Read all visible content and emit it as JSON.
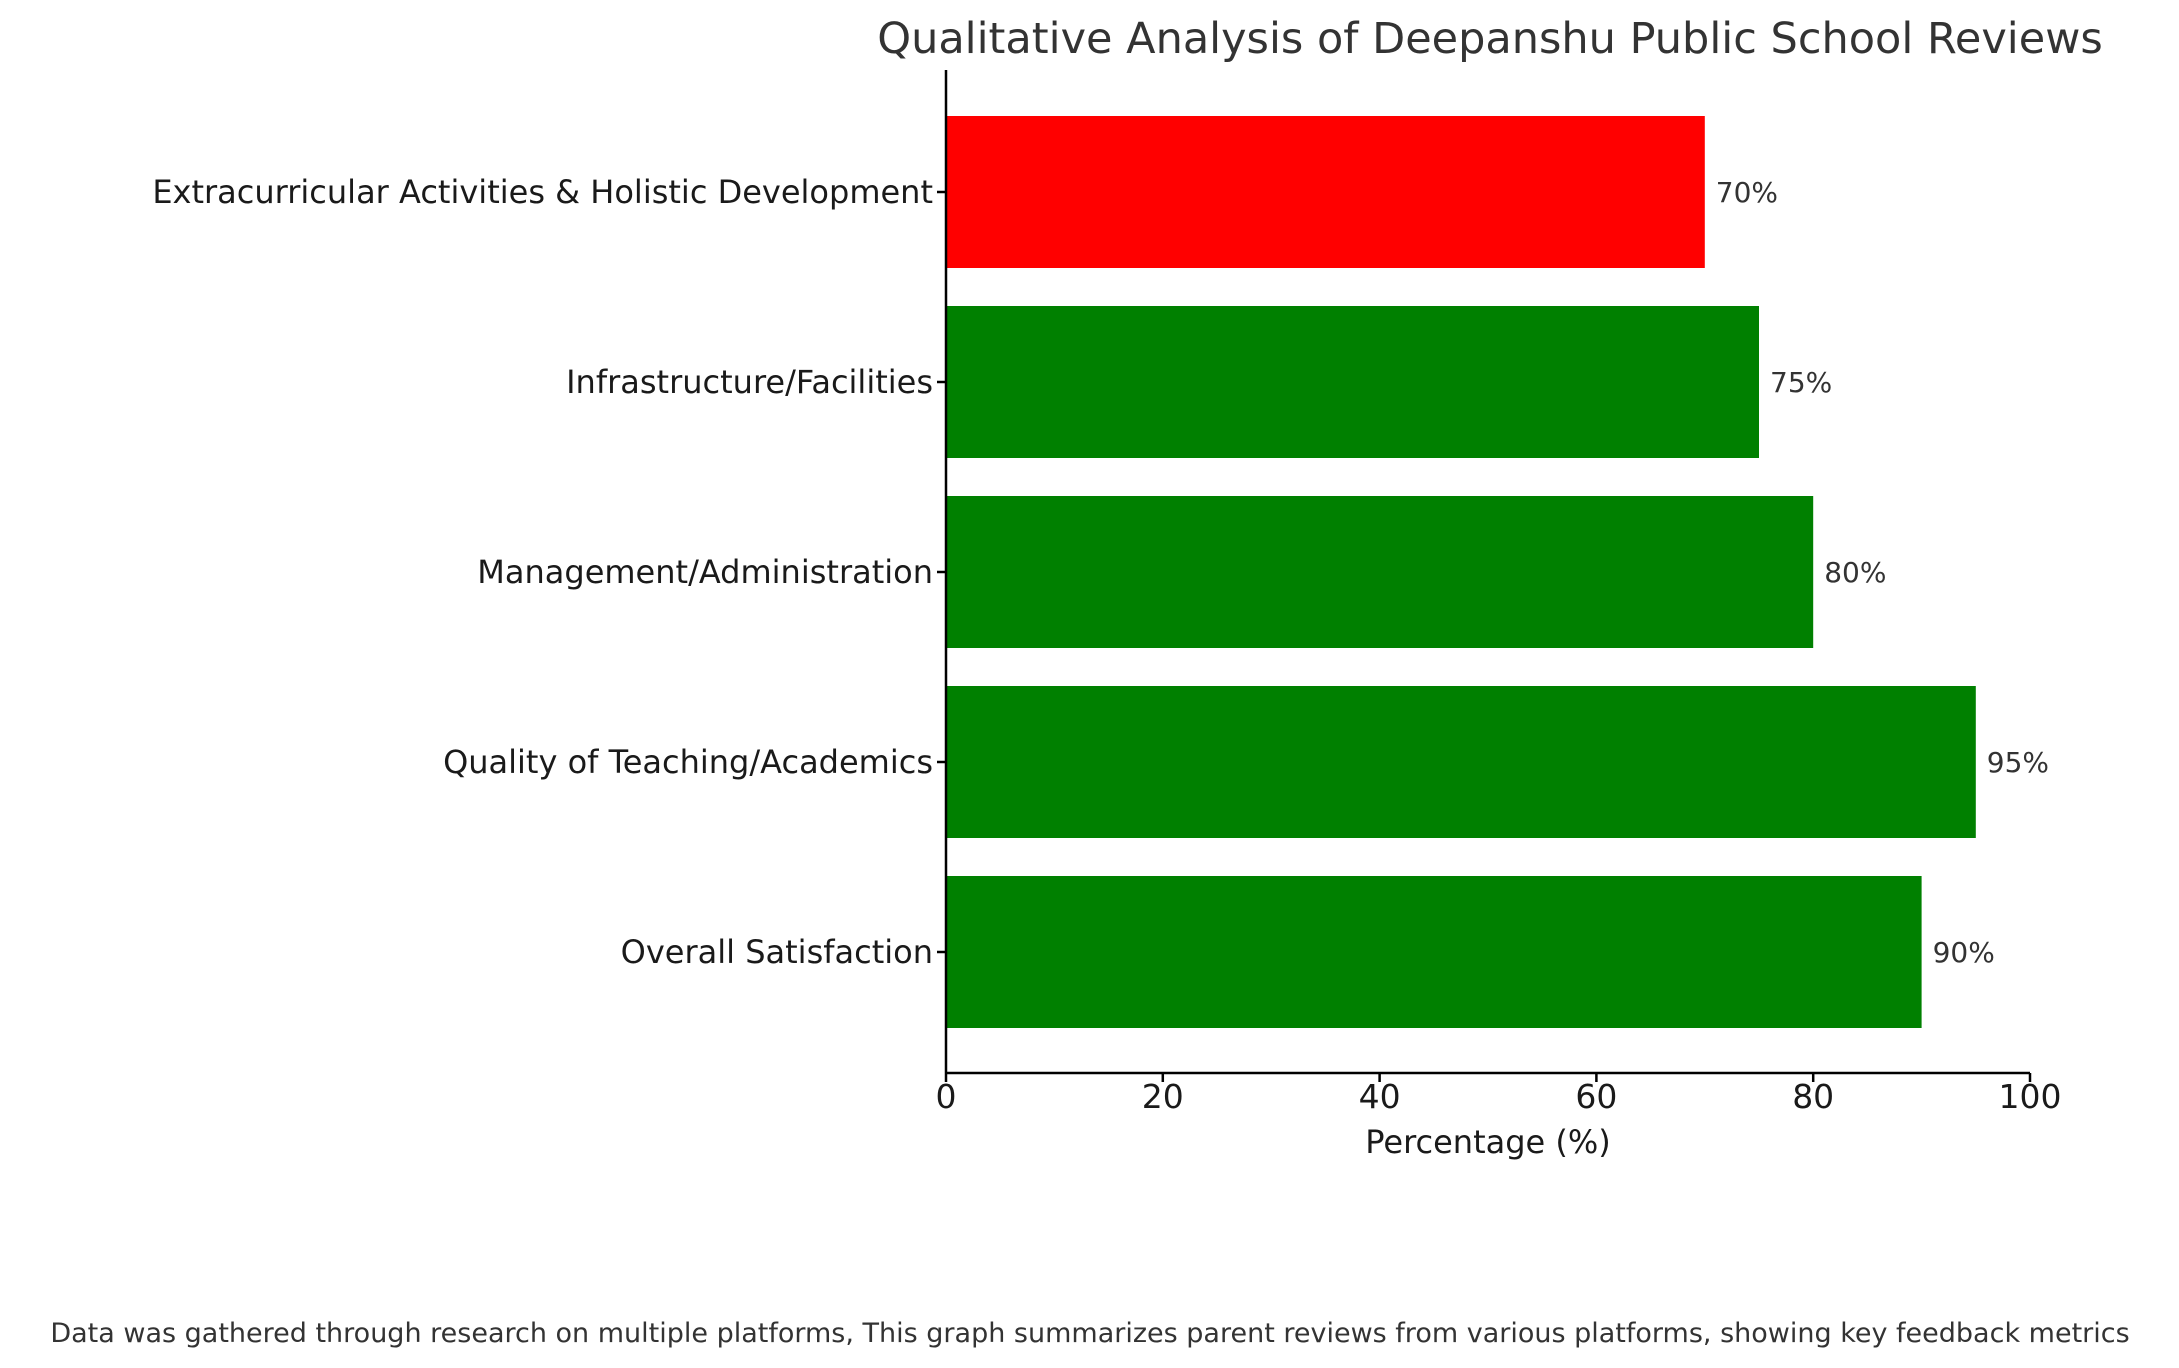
{
  "chart_data": {
    "type": "bar",
    "orientation": "horizontal",
    "title": "Qualitative Analysis of Deepanshu Public School Reviews",
    "xlabel": "Percentage (%)",
    "ylabel": "",
    "xlim": [
      0,
      100
    ],
    "xticks": [
      "0",
      "20",
      "40",
      "60",
      "80",
      "100"
    ],
    "categories": [
      "Overall Satisfaction",
      "Quality of Teaching/Academics",
      "Management/Administration",
      "Infrastructure/Facilities",
      "Extracurricular Activities & Holistic Development"
    ],
    "values": [
      90,
      95,
      80,
      75,
      70
    ],
    "value_labels": [
      "90%",
      "95%",
      "80%",
      "75%",
      "70%"
    ],
    "colors": [
      "#008000",
      "#008000",
      "#008000",
      "#008000",
      "#ff0000"
    ],
    "grid": false,
    "legend": "none",
    "footnote": "Data was gathered through research on multiple platforms, This graph summarizes parent reviews from various platforms, showing key feedback metrics"
  }
}
